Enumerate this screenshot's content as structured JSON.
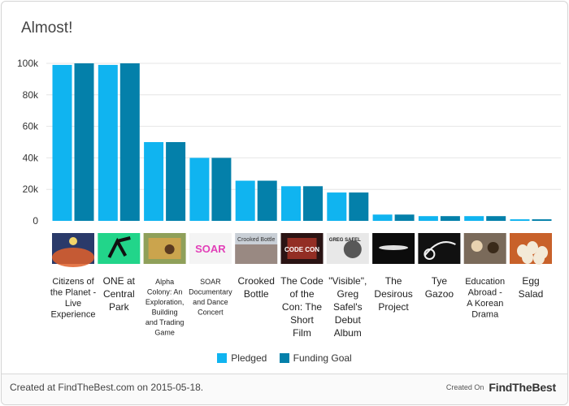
{
  "title": "Almost!",
  "footer": {
    "created_text": "Created at FindTheBest.com on 2015-05-18.",
    "created_on_label": "Created On",
    "brand_name": "FindTheBest"
  },
  "colors": {
    "pledged": "#10b4f0",
    "goal": "#0480aa",
    "grid": "#e6e6e6",
    "axis_text": "#333333"
  },
  "chart_data": {
    "type": "bar",
    "title": "Almost!",
    "xlabel": "",
    "ylabel": "",
    "ylim": [
      0,
      100000
    ],
    "yticks": [
      0,
      20000,
      40000,
      60000,
      80000,
      100000
    ],
    "ytick_labels": [
      "0",
      "20k",
      "40k",
      "60k",
      "80k",
      "100k"
    ],
    "grid": true,
    "legend_position": "bottom",
    "categories": [
      "Citizens of the Planet - Live Experience",
      "ONE at Central Park",
      "Alpha Colony: An Exploration, Building and Trading Game",
      "SOAR Documentary and Dance Concert",
      "Crooked Bottle",
      "The Code of the Con: The Short Film",
      "\"Visible\", Greg Safel's Debut Album",
      "The Desirous Project",
      "Tye Gazoo",
      "Education Abroad - A Korean Drama",
      "Egg Salad"
    ],
    "category_label_lines": [
      [
        "Citizens of",
        "the Planet -",
        "Live",
        "Experience"
      ],
      [
        "ONE at",
        "Central",
        "Park"
      ],
      [
        "Alpha",
        "Colony: An",
        "Exploration,",
        "Building",
        "and Trading",
        "Game"
      ],
      [
        "SOAR",
        "Documentary",
        "and Dance",
        "Concert"
      ],
      [
        "Crooked",
        "Bottle"
      ],
      [
        "The Code",
        "of the",
        "Con: The",
        "Short",
        "Film"
      ],
      [
        "\"Visible\",",
        "Greg",
        "Safel's",
        "Debut",
        "Album"
      ],
      [
        "The",
        "Desirous",
        "Project"
      ],
      [
        "Tye",
        "Gazoo"
      ],
      [
        "Education",
        "Abroad -",
        "A Korean",
        "Drama"
      ],
      [
        "Egg",
        "Salad"
      ]
    ],
    "label_size": [
      "normal",
      "large",
      "small",
      "small",
      "large",
      "large",
      "large",
      "large",
      "large",
      "normal",
      "large"
    ],
    "series": [
      {
        "name": "Pledged",
        "values": [
          99000,
          99000,
          50000,
          40000,
          25500,
          22000,
          18000,
          4000,
          3000,
          3000,
          1000
        ]
      },
      {
        "name": "Funding Goal",
        "values": [
          100000,
          100000,
          50000,
          40000,
          25500,
          22000,
          18000,
          4000,
          3000,
          3000,
          1000
        ]
      }
    ]
  },
  "thumbnails": [
    {
      "icon": "crowd-stage-photo",
      "bg": "#2a3a6a",
      "accent": "#e0602a"
    },
    {
      "icon": "green-dancer-photo",
      "bg": "#22d58a",
      "accent": "#111111"
    },
    {
      "icon": "board-game-box-photo",
      "bg": "#8fa05a",
      "accent": "#d9a54a"
    },
    {
      "icon": "soar-logo-photo",
      "bg": "#f4f4f4",
      "accent": "#e23fb8",
      "text": "SOAR"
    },
    {
      "icon": "crooked-bottle-band-photo",
      "bg": "#c9cfd6",
      "accent": "#7a5a4a",
      "text": "Crooked Bottle"
    },
    {
      "icon": "code-of-the-con-poster",
      "bg": "#2a1414",
      "accent": "#c0392b",
      "text": "CODE CON"
    },
    {
      "icon": "greg-safel-album-cover",
      "bg": "#e8e8e8",
      "accent": "#333333",
      "text": "GREG SAFEL"
    },
    {
      "icon": "dark-silhouette-photo",
      "bg": "#0c0c0c",
      "accent": "#e0e0e0"
    },
    {
      "icon": "guitar-sketch-photo",
      "bg": "#111111",
      "accent": "#f0f0f0"
    },
    {
      "icon": "korean-drama-scene-photo",
      "bg": "#7a6a5a",
      "accent": "#e8d2b0"
    },
    {
      "icon": "eggs-photo",
      "bg": "#c8612a",
      "accent": "#f3ead8"
    }
  ]
}
